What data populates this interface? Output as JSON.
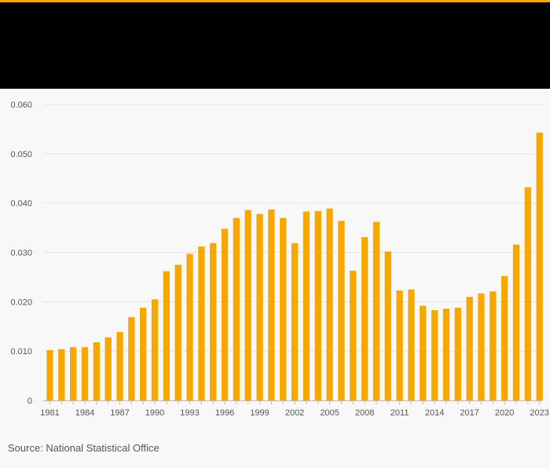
{
  "colors": {
    "accent": "#f7a800",
    "header": "#000000",
    "background": "#f8f8f8",
    "grid": "#e4e4e4",
    "axis_text": "#555555"
  },
  "chart_data": {
    "type": "bar",
    "title": "",
    "xlabel": "",
    "ylabel": "",
    "ylim": [
      0,
      0.06
    ],
    "yticks": [
      "0",
      "0.010",
      "0.020",
      "0.030",
      "0.040",
      "0.050",
      "0.060"
    ],
    "ytick_values": [
      0,
      0.01,
      0.02,
      0.03,
      0.04,
      0.05,
      0.06
    ],
    "xtick_labels": [
      "1981",
      "1984",
      "1987",
      "1990",
      "1993",
      "1996",
      "1999",
      "2002",
      "2005",
      "2008",
      "2011",
      "2014",
      "2017",
      "2020",
      "2023"
    ],
    "categories": [
      "1981",
      "1982",
      "1983",
      "1984",
      "1985",
      "1986",
      "1987",
      "1988",
      "1989",
      "1990",
      "1991",
      "1992",
      "1993",
      "1994",
      "1995",
      "1996",
      "1997",
      "1998",
      "1999",
      "2000",
      "2001",
      "2002",
      "2003",
      "2004",
      "2005",
      "2006",
      "2007",
      "2008",
      "2009",
      "2010",
      "2011",
      "2012",
      "2013",
      "2014",
      "2015",
      "2016",
      "2017",
      "2018",
      "2019",
      "2020",
      "2021",
      "2022",
      "2023"
    ],
    "values": [
      0.0102,
      0.0104,
      0.0108,
      0.0108,
      0.0118,
      0.0128,
      0.0139,
      0.0169,
      0.0188,
      0.0205,
      0.0262,
      0.0275,
      0.0297,
      0.0312,
      0.0319,
      0.0348,
      0.037,
      0.0386,
      0.0378,
      0.0387,
      0.037,
      0.0319,
      0.0383,
      0.0384,
      0.0389,
      0.0364,
      0.0263,
      0.0331,
      0.0362,
      0.0302,
      0.0223,
      0.0225,
      0.0192,
      0.0183,
      0.0186,
      0.0188,
      0.021,
      0.0217,
      0.0221,
      0.0252,
      0.0316,
      0.0432,
      0.0543
    ],
    "grid": true,
    "legend": "none"
  },
  "source": {
    "label": "Source: National Statistical Office"
  }
}
